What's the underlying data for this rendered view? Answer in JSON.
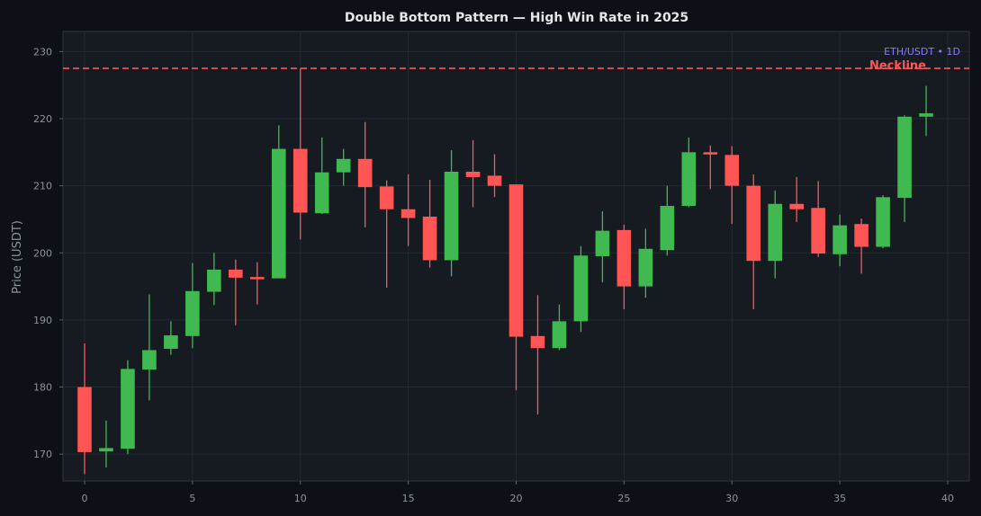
{
  "chart_data": {
    "type": "candlestick",
    "title": "Double Bottom Pattern — High Win Rate in 2025",
    "symbol_label": "ETH/USDT • 1D",
    "xlabel": "",
    "ylabel": "Price (USDT)",
    "xlim": [
      -1,
      41
    ],
    "ylim": [
      166,
      233
    ],
    "x_ticks": [
      0,
      5,
      10,
      15,
      20,
      25,
      30,
      35,
      40
    ],
    "y_ticks": [
      170,
      180,
      190,
      200,
      210,
      220,
      230
    ],
    "grid": true,
    "neckline": {
      "label": "Neckline",
      "value": 227.5,
      "color": "#ff5555"
    },
    "colors": {
      "up": "#3fb950",
      "down": "#ff5555",
      "background": "#0d1117",
      "plot_background": "#161b22",
      "symbol": "#8b7cf6"
    },
    "candles": [
      {
        "x": 0,
        "open": 180.0,
        "high": 186.5,
        "low": 167.0,
        "close": 170.3
      },
      {
        "x": 1,
        "open": 170.4,
        "high": 175.0,
        "low": 168.0,
        "close": 170.9
      },
      {
        "x": 2,
        "open": 170.8,
        "high": 184.0,
        "low": 170.0,
        "close": 182.7
      },
      {
        "x": 3,
        "open": 182.6,
        "high": 193.8,
        "low": 178.0,
        "close": 185.5
      },
      {
        "x": 4,
        "open": 185.7,
        "high": 189.8,
        "low": 184.8,
        "close": 187.7
      },
      {
        "x": 5,
        "open": 187.6,
        "high": 198.5,
        "low": 185.8,
        "close": 194.3
      },
      {
        "x": 6,
        "open": 194.2,
        "high": 200.0,
        "low": 192.2,
        "close": 197.5
      },
      {
        "x": 7,
        "open": 197.5,
        "high": 199.0,
        "low": 189.2,
        "close": 196.3
      },
      {
        "x": 8,
        "open": 196.4,
        "high": 198.6,
        "low": 192.3,
        "close": 196.1
      },
      {
        "x": 9,
        "open": 196.2,
        "high": 219.0,
        "low": 196.2,
        "close": 215.5
      },
      {
        "x": 10,
        "open": 215.5,
        "high": 227.5,
        "low": 202.0,
        "close": 206.0
      },
      {
        "x": 11,
        "open": 205.9,
        "high": 217.2,
        "low": 205.8,
        "close": 212.0
      },
      {
        "x": 12,
        "open": 212.0,
        "high": 215.5,
        "low": 210.0,
        "close": 214.0
      },
      {
        "x": 13,
        "open": 214.0,
        "high": 219.5,
        "low": 203.8,
        "close": 209.8
      },
      {
        "x": 14,
        "open": 209.9,
        "high": 210.8,
        "low": 194.8,
        "close": 206.5
      },
      {
        "x": 15,
        "open": 206.5,
        "high": 211.7,
        "low": 201.0,
        "close": 205.2
      },
      {
        "x": 16,
        "open": 205.4,
        "high": 210.9,
        "low": 197.8,
        "close": 198.9
      },
      {
        "x": 17,
        "open": 198.9,
        "high": 215.3,
        "low": 196.5,
        "close": 212.1
      },
      {
        "x": 18,
        "open": 212.1,
        "high": 216.8,
        "low": 206.8,
        "close": 211.3
      },
      {
        "x": 19,
        "open": 211.5,
        "high": 214.7,
        "low": 208.3,
        "close": 210.0
      },
      {
        "x": 20,
        "open": 210.2,
        "high": 210.2,
        "low": 179.5,
        "close": 187.5
      },
      {
        "x": 21,
        "open": 187.6,
        "high": 193.7,
        "low": 175.9,
        "close": 185.8
      },
      {
        "x": 22,
        "open": 185.8,
        "high": 192.3,
        "low": 185.5,
        "close": 189.8
      },
      {
        "x": 23,
        "open": 189.8,
        "high": 201.0,
        "low": 188.2,
        "close": 199.6
      },
      {
        "x": 24,
        "open": 199.5,
        "high": 206.2,
        "low": 195.6,
        "close": 203.3
      },
      {
        "x": 25,
        "open": 203.4,
        "high": 204.2,
        "low": 191.6,
        "close": 195.0
      },
      {
        "x": 26,
        "open": 195.0,
        "high": 203.6,
        "low": 193.3,
        "close": 200.6
      },
      {
        "x": 27,
        "open": 200.4,
        "high": 210.0,
        "low": 199.6,
        "close": 207.0
      },
      {
        "x": 28,
        "open": 207.0,
        "high": 217.2,
        "low": 206.8,
        "close": 215.0
      },
      {
        "x": 29,
        "open": 215.0,
        "high": 216.0,
        "low": 209.5,
        "close": 214.7
      },
      {
        "x": 30,
        "open": 214.6,
        "high": 215.9,
        "low": 204.3,
        "close": 210.0
      },
      {
        "x": 31,
        "open": 210.0,
        "high": 211.7,
        "low": 191.6,
        "close": 198.8
      },
      {
        "x": 32,
        "open": 198.8,
        "high": 209.3,
        "low": 196.2,
        "close": 207.3
      },
      {
        "x": 33,
        "open": 207.3,
        "high": 211.3,
        "low": 204.6,
        "close": 206.5
      },
      {
        "x": 34,
        "open": 206.7,
        "high": 210.7,
        "low": 199.4,
        "close": 199.9
      },
      {
        "x": 35,
        "open": 199.8,
        "high": 205.7,
        "low": 198.0,
        "close": 204.1
      },
      {
        "x": 36,
        "open": 204.3,
        "high": 205.1,
        "low": 196.9,
        "close": 200.9
      },
      {
        "x": 37,
        "open": 200.9,
        "high": 208.6,
        "low": 200.7,
        "close": 208.3
      },
      {
        "x": 38,
        "open": 208.2,
        "high": 220.5,
        "low": 204.6,
        "close": 220.3
      },
      {
        "x": 39,
        "open": 220.3,
        "high": 224.9,
        "low": 217.4,
        "close": 220.8
      }
    ]
  }
}
